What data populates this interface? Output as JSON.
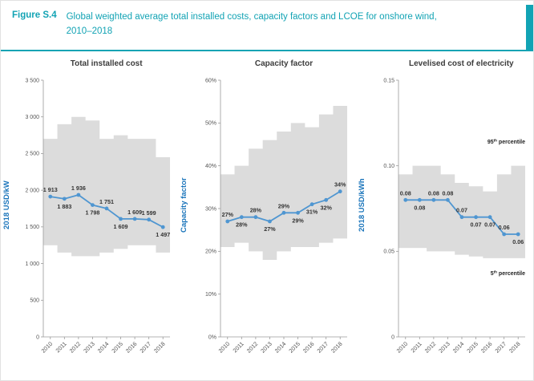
{
  "figure": {
    "label": "Figure S.4",
    "title": "Global weighted average total installed costs, capacity factors and LCOE for onshore wind, 2010–2018"
  },
  "colors": {
    "teal": "#12a3b4",
    "line_blue": "#4f96d1",
    "band_gray": "#dcdcdc",
    "axis_blue": "#1b75bb",
    "label_dark": "#333333",
    "tick_gray": "#555555",
    "axis_gray": "#9a9a9a"
  },
  "chart_data": [
    {
      "type": "line",
      "title": "Total installed cost",
      "ylabel": "2018 USD/kW",
      "x": [
        "2010",
        "2011",
        "2012",
        "2013",
        "2014",
        "2015",
        "2016",
        "2017",
        "2018"
      ],
      "series": [
        {
          "values": [
            1913,
            1883,
            1936,
            1798,
            1751,
            1609,
            1609,
            1599,
            1497
          ]
        }
      ],
      "point_labels": [
        "1 913",
        "1 883",
        "1 936",
        "1 798",
        "1 751",
        "1 609",
        "1 609",
        "1 599",
        "1 497"
      ],
      "label_positions": [
        "above",
        "below",
        "above",
        "below",
        "above",
        "below",
        "above",
        "above",
        "below"
      ],
      "band": {
        "upper": [
          2700,
          2900,
          3000,
          2950,
          2700,
          2750,
          2700,
          2700,
          2450
        ],
        "lower": [
          1250,
          1150,
          1100,
          1100,
          1150,
          1200,
          1250,
          1250,
          1150
        ]
      },
      "ylim": [
        0,
        3500
      ],
      "yticks": [
        0,
        500,
        1000,
        1500,
        2000,
        2500,
        3000,
        3500
      ],
      "ytick_labels": [
        "0",
        "500",
        "1 000",
        "1 500",
        "2 000",
        "2 500",
        "3 000",
        "3 500"
      ],
      "grid": false
    },
    {
      "type": "line",
      "title": "Capacity factor",
      "ylabel": "Capacity factor",
      "x": [
        "2010",
        "2011",
        "2012",
        "2013",
        "2014",
        "2015",
        "2016",
        "2017",
        "2018"
      ],
      "series": [
        {
          "values": [
            27,
            28,
            28,
            27,
            29,
            29,
            31,
            32,
            34
          ]
        }
      ],
      "point_labels": [
        "27%",
        "28%",
        "28%",
        "27%",
        "29%",
        "29%",
        "31%",
        "32%",
        "34%"
      ],
      "label_positions": [
        "above",
        "below",
        "above",
        "below",
        "above",
        "below",
        "below",
        "below",
        "above"
      ],
      "band": {
        "upper": [
          38,
          40,
          44,
          46,
          48,
          50,
          49,
          52,
          54
        ],
        "lower": [
          21,
          22,
          20,
          18,
          20,
          21,
          21,
          22,
          23
        ]
      },
      "ylim": [
        0,
        60
      ],
      "yticks": [
        0,
        10,
        20,
        30,
        40,
        50,
        60
      ],
      "ytick_labels": [
        "0%",
        "10%",
        "20%",
        "30%",
        "40%",
        "50%",
        "60%"
      ],
      "grid": false
    },
    {
      "type": "line",
      "title": "Levelised cost of electricity",
      "ylabel": "2018 USD/kWh",
      "x": [
        "2010",
        "2011",
        "2012",
        "2013",
        "2014",
        "2015",
        "2016",
        "2017",
        "2018"
      ],
      "series": [
        {
          "values": [
            0.08,
            0.08,
            0.08,
            0.08,
            0.07,
            0.07,
            0.07,
            0.06,
            0.06
          ]
        }
      ],
      "point_labels": [
        "0.08",
        "0.08",
        "0.08",
        "0.08",
        "0.07",
        "0.07",
        "0.07",
        "0.06",
        "0.06"
      ],
      "label_positions": [
        "above",
        "below",
        "above",
        "above",
        "above",
        "below",
        "below",
        "above",
        "below"
      ],
      "band": {
        "upper": [
          0.095,
          0.1,
          0.1,
          0.095,
          0.09,
          0.088,
          0.085,
          0.095,
          0.1
        ],
        "lower": [
          0.052,
          0.052,
          0.05,
          0.05,
          0.048,
          0.047,
          0.046,
          0.046,
          0.046
        ]
      },
      "ylim": [
        0,
        0.15
      ],
      "yticks": [
        0,
        0.05,
        0.1,
        0.15
      ],
      "ytick_labels": [
        "0",
        "0.05",
        "0.10",
        "0.15"
      ],
      "grid": false,
      "annotations": [
        {
          "prefix": "95",
          "sup": "th",
          "tail": " percentile",
          "value": 0.113
        },
        {
          "prefix": "5",
          "sup": "th",
          "tail": " percentile",
          "value": 0.036
        }
      ]
    }
  ]
}
